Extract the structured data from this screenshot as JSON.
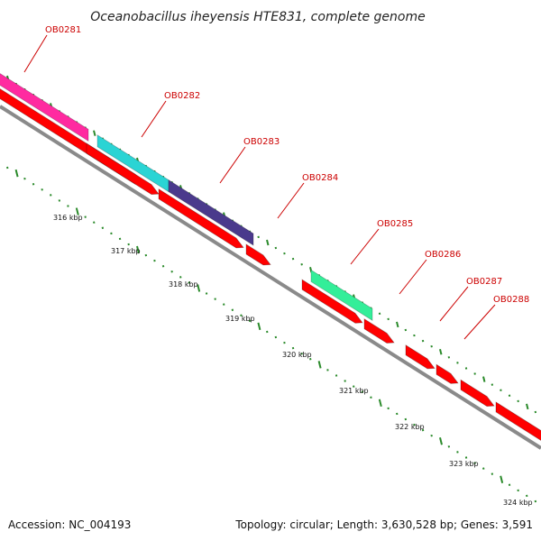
{
  "title": "Oceanobacillus iheyensis HTE831, complete genome",
  "footer": {
    "accession": "Accession: NC_004193",
    "topology": "Topology: circular; Length: 3,630,528 bp; Genes: 3,591"
  },
  "colors": {
    "backbone": "#8a8a8a",
    "cds": "#ff0000",
    "tick": "#2a8a2a",
    "label": "#cc0000"
  },
  "genes": [
    {
      "label": "OB0281",
      "color": "#ff2aa0"
    },
    {
      "label": "OB0282",
      "color": "#2ad4d4"
    },
    {
      "label": "OB0283",
      "color": "#4a3a8c"
    },
    {
      "label": "OB0284",
      "color": "#ff0000"
    },
    {
      "label": "OB0285",
      "color": "#33ee99"
    },
    {
      "label": "OB0286",
      "color": "#ff0000"
    },
    {
      "label": "OB0287",
      "color": "#ff0000"
    },
    {
      "label": "OB0288",
      "color": "#ff0000"
    }
  ],
  "kbp_ticks": [
    "316 kbp",
    "317 kbp",
    "318 kbp",
    "319 kbp",
    "320 kbp",
    "321 kbp",
    "322 kbp",
    "323 kbp",
    "324 kbp"
  ]
}
